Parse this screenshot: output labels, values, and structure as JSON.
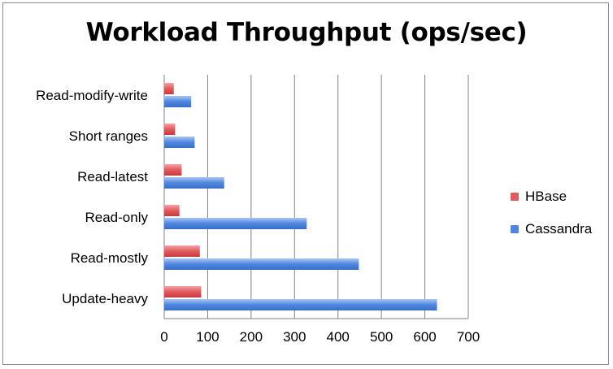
{
  "chart_data": {
    "type": "bar",
    "orientation": "horizontal",
    "title": "Workload Throughput (ops/sec)",
    "xlabel": "",
    "ylabel": "",
    "categories": [
      "Update-heavy",
      "Read-mostly",
      "Read-only",
      "Read-latest",
      "Short ranges",
      "Read-modify-write"
    ],
    "series": [
      {
        "name": "HBase",
        "color": "#e05a5e",
        "values": [
          85,
          82,
          35,
          40,
          25,
          22
        ]
      },
      {
        "name": "Cassandra",
        "color": "#4f86df",
        "values": [
          628,
          448,
          328,
          138,
          70,
          62
        ]
      }
    ],
    "xlim": [
      0,
      700
    ],
    "x_ticks": [
      "0",
      "100",
      "200",
      "300",
      "400",
      "500",
      "600",
      "700"
    ],
    "grid": "vertical",
    "legend_position": "right"
  }
}
